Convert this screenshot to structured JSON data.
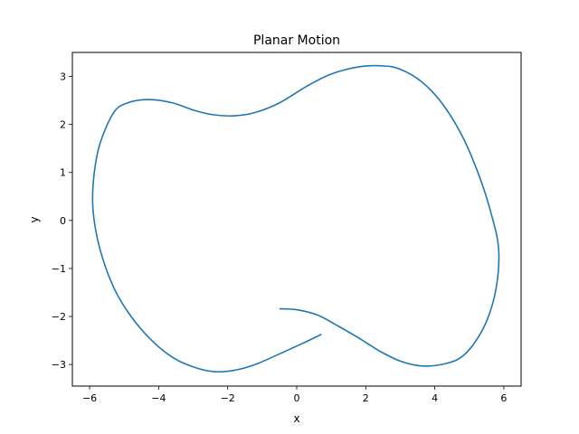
{
  "chart_data": {
    "type": "line",
    "title": "Planar Motion",
    "xlabel": "x",
    "ylabel": "y",
    "xlim": [
      -6.5,
      6.5
    ],
    "ylim": [
      -3.45,
      3.5
    ],
    "xticks": [
      -6,
      -4,
      -2,
      0,
      2,
      4,
      6
    ],
    "yticks": [
      -3,
      -2,
      -1,
      0,
      1,
      2,
      3
    ],
    "xtick_labels": [
      "−6",
      "−4",
      "−2",
      "0",
      "2",
      "4",
      "6"
    ],
    "ytick_labels": [
      "−3",
      "−2",
      "−1",
      "0",
      "1",
      "2",
      "3"
    ],
    "grid": false,
    "colors": {
      "series": "#1f77b4"
    },
    "series": [
      {
        "points": [
          [
            0.72,
            -2.37
          ],
          [
            0.2,
            -2.55
          ],
          [
            -0.5,
            -2.78
          ],
          [
            -1.2,
            -3.0
          ],
          [
            -1.8,
            -3.12
          ],
          [
            -2.4,
            -3.15
          ],
          [
            -3.0,
            -3.05
          ],
          [
            -3.6,
            -2.85
          ],
          [
            -4.2,
            -2.5
          ],
          [
            -4.8,
            -2.0
          ],
          [
            -5.3,
            -1.4
          ],
          [
            -5.7,
            -0.6
          ],
          [
            -5.9,
            0.2
          ],
          [
            -5.88,
            0.9
          ],
          [
            -5.7,
            1.6
          ],
          [
            -5.3,
            2.25
          ],
          [
            -4.9,
            2.45
          ],
          [
            -4.3,
            2.52
          ],
          [
            -3.6,
            2.45
          ],
          [
            -3.0,
            2.3
          ],
          [
            -2.4,
            2.2
          ],
          [
            -1.8,
            2.18
          ],
          [
            -1.2,
            2.25
          ],
          [
            -0.5,
            2.45
          ],
          [
            0.3,
            2.8
          ],
          [
            1.0,
            3.05
          ],
          [
            1.8,
            3.2
          ],
          [
            2.5,
            3.22
          ],
          [
            3.0,
            3.15
          ],
          [
            3.6,
            2.9
          ],
          [
            4.2,
            2.45
          ],
          [
            4.8,
            1.75
          ],
          [
            5.3,
            0.9
          ],
          [
            5.65,
            0.1
          ],
          [
            5.85,
            -0.6
          ],
          [
            5.78,
            -1.4
          ],
          [
            5.5,
            -2.1
          ],
          [
            5.1,
            -2.6
          ],
          [
            4.7,
            -2.88
          ],
          [
            4.2,
            -3.0
          ],
          [
            3.6,
            -3.03
          ],
          [
            3.0,
            -2.93
          ],
          [
            2.4,
            -2.72
          ],
          [
            1.8,
            -2.45
          ],
          [
            1.2,
            -2.2
          ],
          [
            0.6,
            -1.97
          ],
          [
            0.0,
            -1.86
          ],
          [
            -0.5,
            -1.84
          ]
        ]
      }
    ]
  }
}
